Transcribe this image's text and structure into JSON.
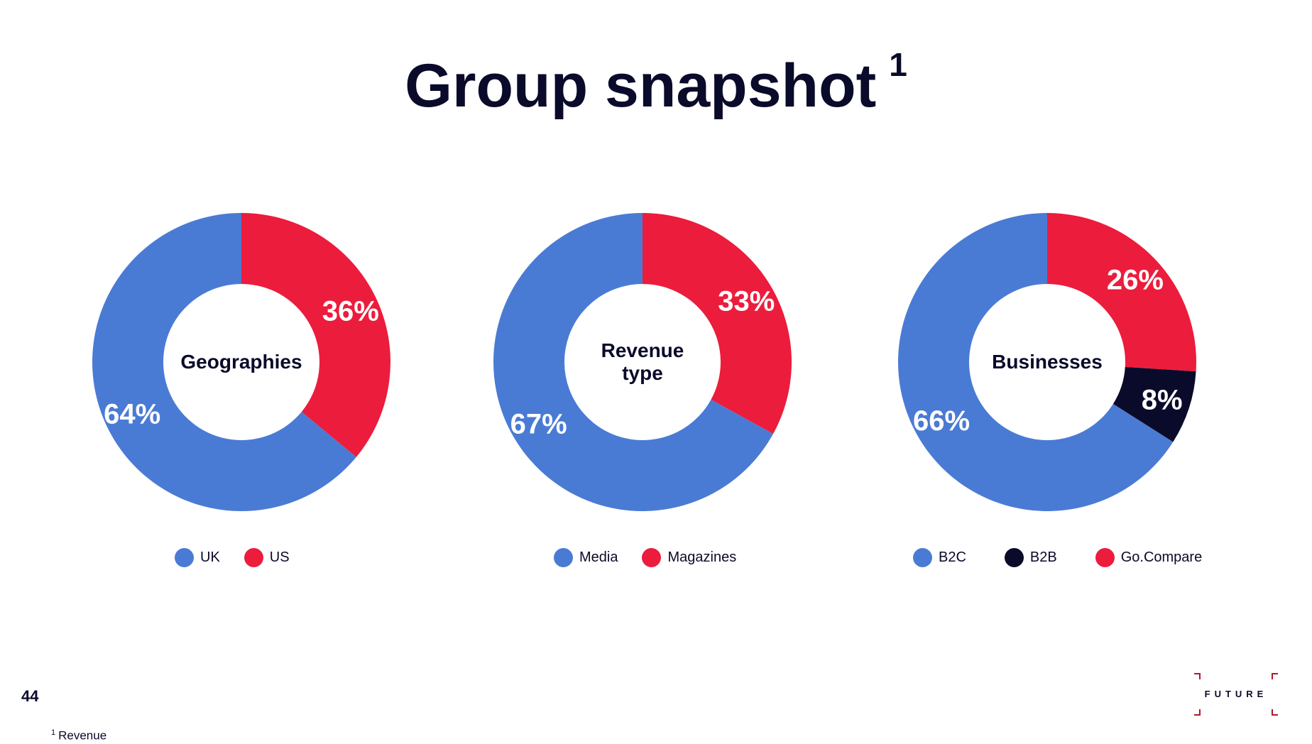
{
  "title": "Group snapshot",
  "title_superscript": "1",
  "page_number": "44",
  "footnote": {
    "marker": "1",
    "text": "Revenue"
  },
  "logo": {
    "text": "FUTURE"
  },
  "colors": {
    "blue": "#4a7bd4",
    "red": "#ec1c3c",
    "navy": "#0a0a2a"
  },
  "chart_data": [
    {
      "type": "pie",
      "title": "Geographies",
      "series": [
        {
          "name": "US",
          "value": 36,
          "label": "36%",
          "color": "#ec1c3c"
        },
        {
          "name": "UK",
          "value": 64,
          "label": "64%",
          "color": "#4a7bd4"
        }
      ],
      "legend": [
        {
          "name": "UK",
          "color": "#4a7bd4"
        },
        {
          "name": "US",
          "color": "#ec1c3c"
        }
      ],
      "legend_placement": "bottom"
    },
    {
      "type": "pie",
      "title": "Revenue\ntype",
      "series": [
        {
          "name": "Magazines",
          "value": 33,
          "label": "33%",
          "color": "#ec1c3c"
        },
        {
          "name": "Media",
          "value": 67,
          "label": "67%",
          "color": "#4a7bd4"
        }
      ],
      "legend": [
        {
          "name": "Media",
          "color": "#4a7bd4"
        },
        {
          "name": "Magazines",
          "color": "#ec1c3c"
        }
      ],
      "legend_placement": "bottom"
    },
    {
      "type": "pie",
      "title": "Businesses",
      "series": [
        {
          "name": "Go.Compare",
          "value": 26,
          "label": "26%",
          "color": "#ec1c3c"
        },
        {
          "name": "B2B",
          "value": 8,
          "label": "8%",
          "color": "#0a0a2a"
        },
        {
          "name": "B2C",
          "value": 66,
          "label": "66%",
          "color": "#4a7bd4"
        }
      ],
      "legend": [
        {
          "name": "B2C",
          "color": "#4a7bd4"
        },
        {
          "name": "B2B",
          "color": "#0a0a2a"
        },
        {
          "name": "Go.Compare",
          "color": "#ec1c3c"
        }
      ],
      "legend_placement": "bottom"
    }
  ]
}
